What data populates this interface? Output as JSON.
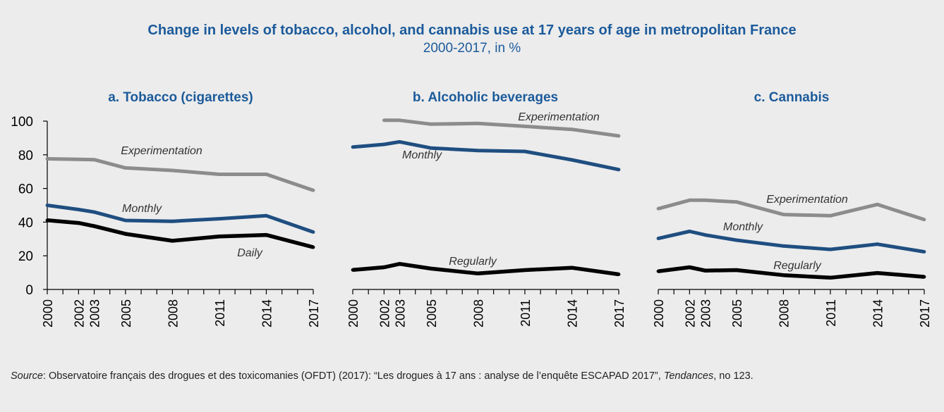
{
  "title": "Change in levels of tobacco, alcohol, and cannabis use at 17 years of age in metropolitan France",
  "subtitle": "2000-2017, in %",
  "source": {
    "label": "Source",
    "text1": ": Observatoire français des drogues et des toxicomanies (OFDT) (2017): “Les drogues à 17 ans : analyse de l’enquête ESCAPAD 2017”, ",
    "journal": "Tendances",
    "text2": ", no 123."
  },
  "colors": {
    "title": "#1c5b9b",
    "grey_series": "#8c8c8c",
    "blue_series": "#1f4e80",
    "black_series": "#000000",
    "background": "#ececec"
  },
  "chart_data": [
    {
      "type": "line",
      "title": "a. Tobacco (cigarettes)",
      "x": [
        2000,
        2002,
        2003,
        2005,
        2008,
        2011,
        2014,
        2017
      ],
      "ylim": [
        0,
        100
      ],
      "yticks": [
        0,
        20,
        40,
        60,
        80,
        100
      ],
      "show_y_axis": true,
      "series": [
        {
          "name": "Experimentation",
          "color_key": "grey_series",
          "values": [
            77.6,
            77.3,
            77.1,
            72.2,
            70.7,
            68.4,
            68.4,
            58.9
          ]
        },
        {
          "name": "Monthly",
          "color_key": "blue_series",
          "values": [
            50.0,
            47.5,
            46.0,
            41.0,
            40.5,
            42.0,
            43.8,
            34.1
          ]
        },
        {
          "name": "Daily",
          "color_key": "black_series",
          "values": [
            41.1,
            39.5,
            37.6,
            33.0,
            28.9,
            31.5,
            32.4,
            25.1
          ]
        }
      ],
      "label_positions": [
        "Experimentation",
        "Monthly",
        "Daily"
      ]
    },
    {
      "type": "line",
      "title": "b. Alcoholic beverages",
      "x": [
        2000,
        2002,
        2003,
        2005,
        2008,
        2011,
        2014,
        2017
      ],
      "ylim": [
        0,
        100
      ],
      "show_y_axis": false,
      "series": [
        {
          "name": "Experimentation",
          "color_key": "grey_series",
          "values": [
            null,
            100.5,
            100.5,
            98.2,
            98.6,
            96.9,
            95.1,
            91.2
          ]
        },
        {
          "name": "Monthly",
          "color_key": "blue_series",
          "values": [
            84.6,
            86.2,
            87.7,
            84.0,
            82.5,
            82.0,
            77.0,
            71.2
          ]
        },
        {
          "name": "Regularly",
          "color_key": "black_series",
          "values": [
            11.6,
            13.2,
            15.2,
            12.4,
            9.5,
            11.5,
            12.9,
            9.0
          ]
        }
      ]
    },
    {
      "type": "line",
      "title": "c. Cannabis",
      "x": [
        2000,
        2002,
        2003,
        2005,
        2008,
        2011,
        2014,
        2017
      ],
      "ylim": [
        0,
        100
      ],
      "show_y_axis": false,
      "series": [
        {
          "name": "Experimentation",
          "color_key": "grey_series",
          "values": [
            48.0,
            53.0,
            53.0,
            52.0,
            44.5,
            43.8,
            50.5,
            41.5
          ]
        },
        {
          "name": "Monthly",
          "color_key": "blue_series",
          "values": [
            30.3,
            34.5,
            32.4,
            29.3,
            25.8,
            23.8,
            26.9,
            22.4
          ]
        },
        {
          "name": "Regularly",
          "color_key": "black_series",
          "values": [
            10.8,
            13.2,
            11.2,
            11.5,
            8.5,
            7.0,
            9.8,
            7.5
          ]
        }
      ]
    }
  ]
}
